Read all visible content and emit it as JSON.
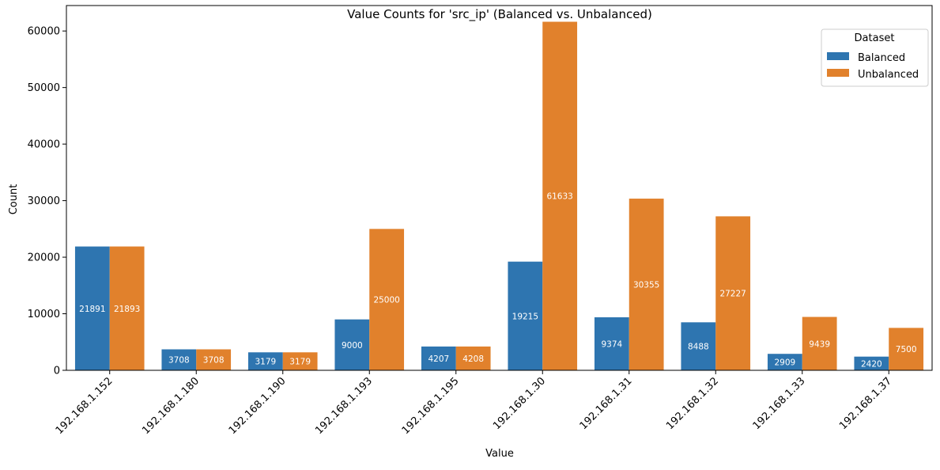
{
  "chart_data": {
    "type": "bar",
    "title": "Value Counts for 'src_ip' (Balanced vs. Unbalanced)",
    "xlabel": "Value",
    "ylabel": "Count",
    "categories": [
      "192.168.1.152",
      "192.168.1.180",
      "192.168.1.190",
      "192.168.1.193",
      "192.168.1.195",
      "192.168.1.30",
      "192.168.1.31",
      "192.168.1.32",
      "192.168.1.33",
      "192.168.1.37"
    ],
    "series": [
      {
        "name": "Balanced",
        "color": "#2e75b0",
        "values": [
          21891,
          3708,
          3179,
          9000,
          4207,
          19215,
          9374,
          8488,
          2909,
          2420
        ]
      },
      {
        "name": "Unbalanced",
        "color": "#e1812c",
        "values": [
          21893,
          3708,
          3179,
          25000,
          4208,
          61633,
          30355,
          27227,
          9439,
          7500
        ]
      }
    ],
    "ylim": [
      0,
      64500
    ],
    "yticks": [
      0,
      10000,
      20000,
      30000,
      40000,
      50000,
      60000
    ],
    "legend": {
      "title": "Dataset",
      "position": "top-right"
    },
    "grid": false
  }
}
